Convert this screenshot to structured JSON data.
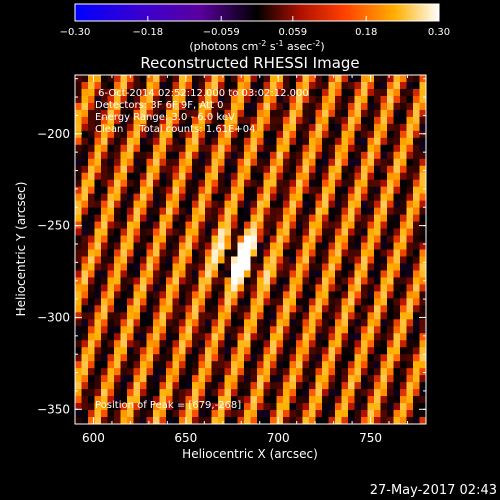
{
  "colorbar": {
    "ticks": [
      "-0.30",
      "-0.18",
      "-0.059",
      "0.059",
      "0.18",
      "0.30"
    ],
    "unit_main": "(photons cm",
    "unit_exp1": "-2",
    "unit_mid": " s",
    "unit_exp2": "-1",
    "unit_end": " asec",
    "unit_exp3": "-2",
    "unit_close": ")"
  },
  "plot": {
    "title": "Reconstructed RHESSI Image",
    "annotations": [
      " 6-Oct-2014 02:52:12.000 to 03:02:12.000",
      "Detectors: 3F 6F 9F, Att 0",
      "Energy Range: 3.0 - 6.0 keV",
      "Clean     Total counts: 1.61E+04"
    ],
    "peak_label": "Position of Peak = [679,-268]"
  },
  "footer": {
    "timestamp": "27-May-2017 02:43"
  },
  "chart_data": {
    "type": "heatmap",
    "title": "Reconstructed RHESSI Image",
    "xlabel": "Heliocentric X (arcsec)",
    "ylabel": "Heliocentric Y (arcsec)",
    "xlim": [
      590,
      780
    ],
    "ylim": [
      -358,
      -168
    ],
    "x_ticks": [
      600,
      650,
      700,
      750
    ],
    "y_ticks": [
      -200,
      -250,
      -300,
      -350
    ],
    "x_tick_labels": [
      "600",
      "650",
      "700",
      "750"
    ],
    "y_tick_labels": [
      "−200",
      "−250",
      "−300",
      "−350"
    ],
    "color_range": [
      -0.3,
      0.3
    ],
    "colorbar_label": "(photons cm^-2 s^-1 asec^-2)",
    "peak": [
      679,
      -268
    ],
    "colormap": [
      "#0000ff",
      "#4b0082",
      "#000000",
      "#b01000",
      "#ff5500",
      "#ffb000",
      "#ffffff"
    ]
  }
}
